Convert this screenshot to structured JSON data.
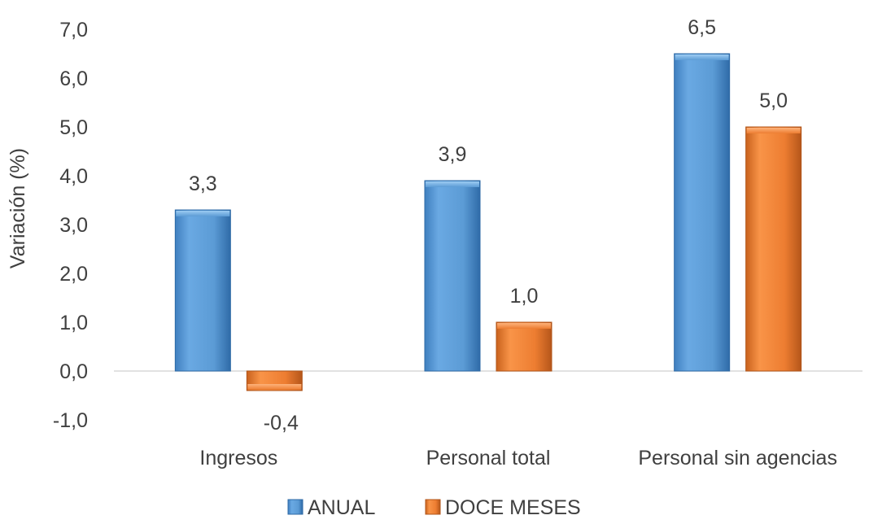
{
  "chart_data": {
    "type": "bar",
    "title": "",
    "xlabel": "",
    "ylabel": "Variación (%)",
    "ylim": [
      -1,
      7
    ],
    "yticks": [
      "-1,0",
      "0,0",
      "1,0",
      "2,0",
      "3,0",
      "4,0",
      "5,0",
      "6,0",
      "7,0"
    ],
    "categories": [
      "Ingresos",
      "Personal total",
      "Personal sin agencias"
    ],
    "series": [
      {
        "name": "ANUAL",
        "values": [
          3.3,
          3.9,
          6.5
        ],
        "labels": [
          "3,3",
          "3,9",
          "6,5"
        ],
        "color": "#5B9BD5"
      },
      {
        "name": "DOCE MESES",
        "values": [
          -0.4,
          1.0,
          5.0
        ],
        "labels": [
          "-0,4",
          "1,0",
          "5,0"
        ],
        "color": "#ED7D31"
      }
    ],
    "grid": false,
    "legend_position": "bottom"
  }
}
